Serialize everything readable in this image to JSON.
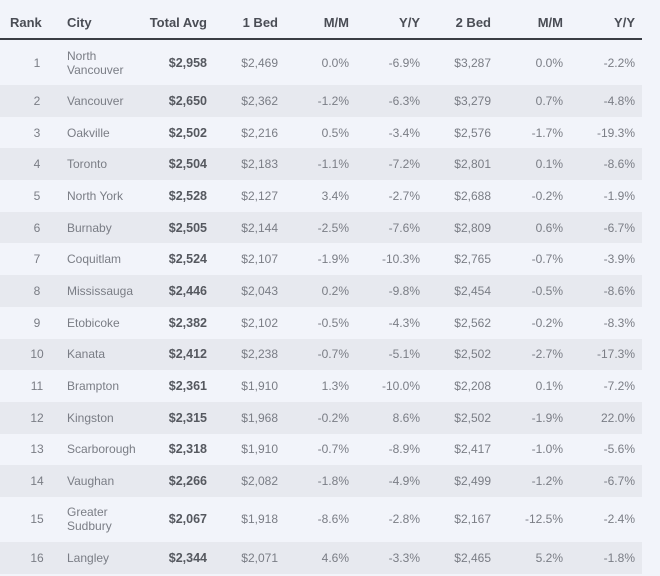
{
  "headers": [
    "Rank",
    "City",
    "Total Avg",
    "1 Bed",
    "M/M",
    "Y/Y",
    "2 Bed",
    "M/M",
    "Y/Y"
  ],
  "rows": [
    [
      "1",
      "North Vancouver",
      "$2,958",
      "$2,469",
      "0.0%",
      "-6.9%",
      "$3,287",
      "0.0%",
      "-2.2%"
    ],
    [
      "2",
      "Vancouver",
      "$2,650",
      "$2,362",
      "-1.2%",
      "-6.3%",
      "$3,279",
      "0.7%",
      "-4.8%"
    ],
    [
      "3",
      "Oakville",
      "$2,502",
      "$2,216",
      "0.5%",
      "-3.4%",
      "$2,576",
      "-1.7%",
      "-19.3%"
    ],
    [
      "4",
      "Toronto",
      "$2,504",
      "$2,183",
      "-1.1%",
      "-7.2%",
      "$2,801",
      "0.1%",
      "-8.6%"
    ],
    [
      "5",
      "North York",
      "$2,528",
      "$2,127",
      "3.4%",
      "-2.7%",
      "$2,688",
      "-0.2%",
      "-1.9%"
    ],
    [
      "6",
      "Burnaby",
      "$2,505",
      "$2,144",
      "-2.5%",
      "-7.6%",
      "$2,809",
      "0.6%",
      "-6.7%"
    ],
    [
      "7",
      "Coquitlam",
      "$2,524",
      "$2,107",
      "-1.9%",
      "-10.3%",
      "$2,765",
      "-0.7%",
      "-3.9%"
    ],
    [
      "8",
      "Mississauga",
      "$2,446",
      "$2,043",
      "0.2%",
      "-9.8%",
      "$2,454",
      "-0.5%",
      "-8.6%"
    ],
    [
      "9",
      "Etobicoke",
      "$2,382",
      "$2,102",
      "-0.5%",
      "-4.3%",
      "$2,562",
      "-0.2%",
      "-8.3%"
    ],
    [
      "10",
      "Kanata",
      "$2,412",
      "$2,238",
      "-0.7%",
      "-5.1%",
      "$2,502",
      "-2.7%",
      "-17.3%"
    ],
    [
      "11",
      "Brampton",
      "$2,361",
      "$1,910",
      "1.3%",
      "-10.0%",
      "$2,208",
      "0.1%",
      "-7.2%"
    ],
    [
      "12",
      "Kingston",
      "$2,315",
      "$1,968",
      "-0.2%",
      "8.6%",
      "$2,502",
      "-1.9%",
      "22.0%"
    ],
    [
      "13",
      "Scarborough",
      "$2,318",
      "$1,910",
      "-0.7%",
      "-8.9%",
      "$2,417",
      "-1.0%",
      "-5.6%"
    ],
    [
      "14",
      "Vaughan",
      "$2,266",
      "$2,082",
      "-1.8%",
      "-4.9%",
      "$2,499",
      "-1.2%",
      "-6.7%"
    ],
    [
      "15",
      "Greater Sudbury",
      "$2,067",
      "$1,918",
      "-8.6%",
      "-2.8%",
      "$2,167",
      "-12.5%",
      "-2.4%"
    ],
    [
      "16",
      "Langley",
      "$2,344",
      "$2,071",
      "4.6%",
      "-3.3%",
      "$2,465",
      "5.2%",
      "-1.8%"
    ]
  ]
}
